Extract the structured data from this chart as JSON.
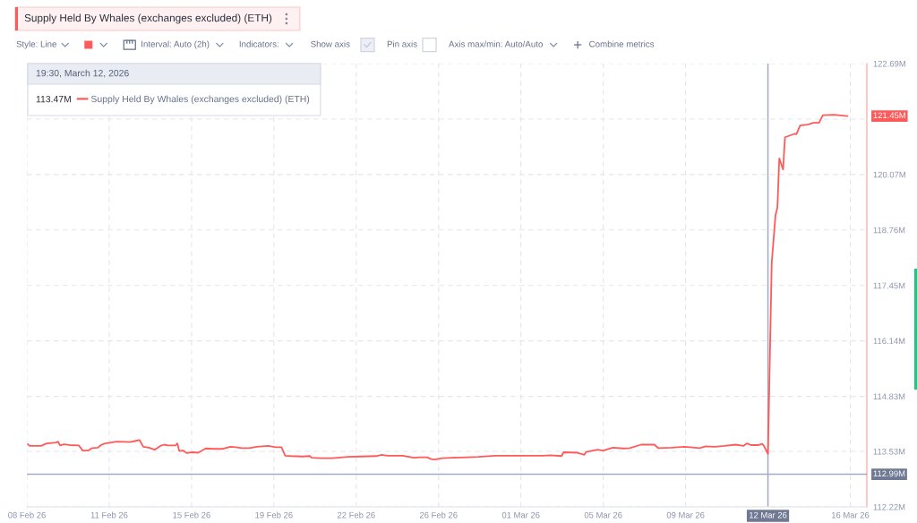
{
  "chart_data": {
    "type": "line",
    "title": "Supply Held By Whales (exchanges excluded) (ETH)",
    "annotations": [
      "Style: Line",
      "Interval: Auto (2h)",
      "Indicators:",
      "Show axis",
      "Pin axis",
      "Axis max/min: Auto/Auto",
      "Combine metrics",
      "19:30, March 12, 2026",
      "113.47M",
      "121.45M"
    ],
    "x": [
      "2026-02-08T05:30",
      "2026-02-08T07:30",
      "2026-02-08T19:30",
      "2026-02-09T01:30",
      "2026-02-09T11:30",
      "2026-02-09T13:30",
      "2026-02-09T15:30",
      "2026-02-09T19:30",
      "2026-02-10T01:30",
      "2026-02-10T11:30",
      "2026-02-10T15:30",
      "2026-02-10T21:30",
      "2026-02-11T01:30",
      "2026-02-11T07:30",
      "2026-02-11T11:30",
      "2026-02-11T15:30",
      "2026-02-12T03:30",
      "2026-02-12T17:30",
      "2026-02-12T23:30",
      "2026-02-13T03:30",
      "2026-02-13T07:30",
      "2026-02-13T13:30",
      "2026-02-13T19:30",
      "2026-02-14T01:30",
      "2026-02-14T05:30",
      "2026-02-14T09:30",
      "2026-02-14T17:30",
      "2026-02-14T19:30",
      "2026-02-14T21:30",
      "2026-02-15T01:30",
      "2026-02-15T05:30",
      "2026-02-15T11:30",
      "2026-02-15T17:30",
      "2026-02-16T01:30",
      "2026-02-16T09:30",
      "2026-02-16T19:30",
      "2026-02-17T03:30",
      "2026-02-17T09:30",
      "2026-02-17T15:30",
      "2026-02-17T23:30",
      "2026-02-18T07:30",
      "2026-02-18T19:30",
      "2026-02-19T03:30",
      "2026-02-19T09:30",
      "2026-02-19T13:30",
      "2026-02-19T19:30",
      "2026-02-20T07:30",
      "2026-02-20T15:30",
      "2026-02-20T17:30",
      "2026-02-21T03:30",
      "2026-02-21T15:30",
      "2026-02-22T07:30",
      "2026-02-22T21:30",
      "2026-02-23T13:30",
      "2026-02-23T19:30",
      "2026-02-24T01:30",
      "2026-02-24T17:30",
      "2026-02-25T05:30",
      "2026-02-25T11:30",
      "2026-02-25T19:30",
      "2026-02-25T23:30",
      "2026-02-26T03:30",
      "2026-02-26T11:30",
      "2026-02-26T21:30",
      "2026-02-27T13:30",
      "2026-02-28T01:30",
      "2026-02-28T19:30",
      "2026-03-01T23:30",
      "2026-03-02T21:30",
      "2026-03-03T05:30",
      "2026-03-03T17:30",
      "2026-03-03T19:30",
      "2026-03-04T09:30",
      "2026-03-04T17:30",
      "2026-03-04T19:30",
      "2026-03-05T07:30",
      "2026-03-05T13:30",
      "2026-03-05T23:30",
      "2026-03-06T11:30",
      "2026-03-06T17:30",
      "2026-03-07T05:30",
      "2026-03-07T19:30",
      "2026-03-07T23:30",
      "2026-03-08T13:30",
      "2026-03-09T03:30",
      "2026-03-09T19:30",
      "2026-03-10T01:30",
      "2026-03-10T11:30",
      "2026-03-10T21:30",
      "2026-03-11T09:30",
      "2026-03-11T17:30",
      "2026-03-11T21:30",
      "2026-03-12T01:30",
      "2026-03-12T09:30",
      "2026-03-12T13:30",
      "2026-03-12T15:30",
      "2026-03-12T19:30",
      "2026-03-12T23:30",
      "2026-03-13T03:30",
      "2026-03-13T05:30",
      "2026-03-13T07:30",
      "2026-03-13T11:30",
      "2026-03-13T13:30",
      "2026-03-13T23:30",
      "2026-03-14T01:30",
      "2026-03-14T05:30",
      "2026-03-14T13:30",
      "2026-03-14T19:30",
      "2026-03-15T01:30",
      "2026-03-15T05:30",
      "2026-03-15T17:30",
      "2026-03-16T07:30"
    ],
    "series": [
      {
        "name": "Supply Held By Whales (exchanges excluded) (ETH)",
        "color": "#ff5a5a",
        "values": [
          113.7,
          113.66,
          113.66,
          113.72,
          113.74,
          113.76,
          113.67,
          113.7,
          113.68,
          113.67,
          113.55,
          113.55,
          113.61,
          113.62,
          113.69,
          113.72,
          113.76,
          113.75,
          113.78,
          113.8,
          113.64,
          113.62,
          113.57,
          113.66,
          113.69,
          113.67,
          113.67,
          113.72,
          113.54,
          113.55,
          113.49,
          113.51,
          113.5,
          113.6,
          113.59,
          113.59,
          113.64,
          113.63,
          113.61,
          113.61,
          113.64,
          113.66,
          113.63,
          113.63,
          113.43,
          113.42,
          113.41,
          113.42,
          113.38,
          113.37,
          113.37,
          113.4,
          113.41,
          113.42,
          113.45,
          113.43,
          113.43,
          113.38,
          113.39,
          113.39,
          113.35,
          113.34,
          113.37,
          113.38,
          113.39,
          113.4,
          113.43,
          113.43,
          113.43,
          113.44,
          113.42,
          113.51,
          113.5,
          113.45,
          113.52,
          113.57,
          113.55,
          113.62,
          113.6,
          113.61,
          113.69,
          113.69,
          113.61,
          113.62,
          113.64,
          113.61,
          113.65,
          113.64,
          113.66,
          113.69,
          113.66,
          113.72,
          113.68,
          113.68,
          113.71,
          113.65,
          113.47,
          117.99,
          119.11,
          119.29,
          120.45,
          120.19,
          120.95,
          121.03,
          121.02,
          121.23,
          121.25,
          121.29,
          121.29,
          121.47,
          121.48,
          121.45
        ]
      }
    ],
    "xlim": [
      "2026-02-08T04:30",
      "2026-03-17T04:00"
    ],
    "xticks": [
      {
        "value": "2026-02-08T04:30",
        "label": "08 Feb 26"
      },
      {
        "value": "2026-02-11T19:30",
        "label": "11 Feb 26"
      },
      {
        "value": "2026-02-15T10:30",
        "label": "15 Feb 26"
      },
      {
        "value": "2026-02-19T01:30",
        "label": "19 Feb 26"
      },
      {
        "value": "2026-02-22T16:30",
        "label": "22 Feb 26"
      },
      {
        "value": "2026-02-26T07:30",
        "label": "26 Feb 26"
      },
      {
        "value": "2026-03-01T22:30",
        "label": "01 Mar 26"
      },
      {
        "value": "2026-03-05T13:30",
        "label": "05 Mar 26"
      },
      {
        "value": "2026-03-09T04:30",
        "label": "09 Mar 26"
      },
      {
        "value": "2026-03-16T10:30",
        "label": "16 Mar 26"
      }
    ],
    "ylim": [
      112.22,
      122.69
    ],
    "yticks": [
      {
        "value": 112.22,
        "label": "112.22M"
      },
      {
        "value": 113.53,
        "label": "113.53M"
      },
      {
        "value": 114.83,
        "label": "114.83M"
      },
      {
        "value": 116.14,
        "label": "116.14M"
      },
      {
        "value": 117.45,
        "label": "117.45M"
      },
      {
        "value": 118.76,
        "label": "118.76M"
      },
      {
        "value": 120.07,
        "label": "120.07M"
      },
      {
        "value": 121.38,
        "label": null
      },
      {
        "value": 122.69,
        "label": "122.69M"
      }
    ],
    "ref_lines": [
      {
        "axis": "x",
        "value": "2026-03-12T19:30",
        "label": "12 Mar 26",
        "color": "#a3abc2"
      },
      {
        "axis": "y",
        "value": 112.99,
        "label": "112.99M",
        "color": "#a3abc2"
      }
    ],
    "grid": true,
    "legend": "top left"
  }
}
